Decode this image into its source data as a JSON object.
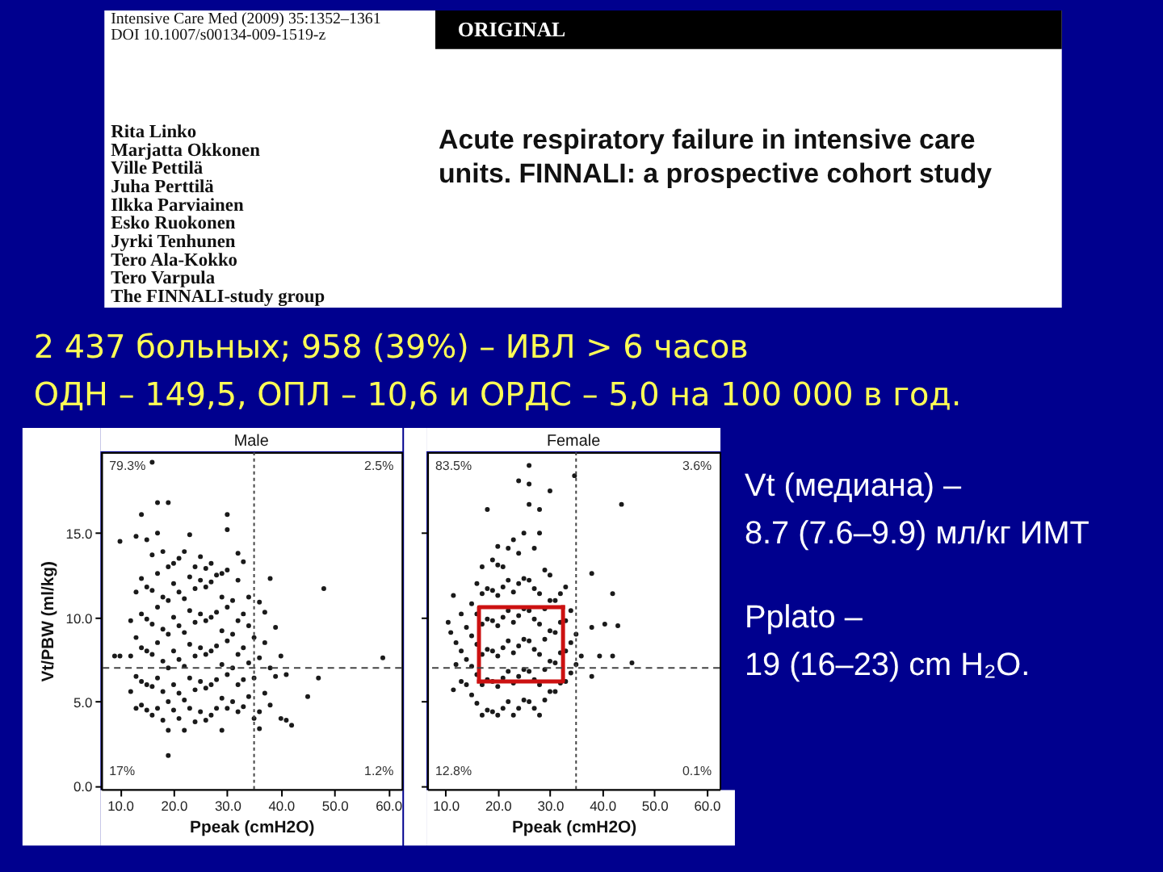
{
  "chart_data": [
    {
      "type": "other",
      "title": "Acute respiratory failure in intensive care units. FINNALI: a prospective cohort study",
      "annotations": [
        "Intensive Care Med (2009) 35:1352–1361",
        "DOI 10.1007/s00134-009-1519-z",
        "ORIGINAL",
        "Rita Linko",
        "Marjatta Okkonen",
        "Ville Pettilä",
        "Juha Perttilä",
        "Ilkka Parviainen",
        "Esko Ruokonen",
        "Jyrki Tenhunen",
        "Tero Ala-Kokko",
        "Tero Varpula",
        "The FINNALI-study group"
      ]
    },
    {
      "type": "other",
      "annotations": [
        "2 437 больных; 958 (39%) – ИВЛ > 6 часов",
        "ОДН – 149,5, ОПЛ – 10,6 и ОРДС – 5,0 на 100 000 в год."
      ]
    },
    {
      "type": "scatter",
      "title": "Male",
      "xlabel": "Ppeak (cmH2O)",
      "ylabel": "Vt/PBW (ml/kg)",
      "xlim": [
        6.5,
        62.5
      ],
      "ylim": [
        -0.2,
        19.8
      ],
      "xticks": [
        {
          "value": 10,
          "label": "10.0"
        },
        {
          "value": 20,
          "label": "20.0"
        },
        {
          "value": 30,
          "label": "30.0"
        },
        {
          "value": 40,
          "label": "40.0"
        },
        {
          "value": 50,
          "label": "50.0"
        },
        {
          "value": 60,
          "label": "60.0"
        }
      ],
      "yticks": [
        {
          "value": 0,
          "label": "0.0"
        },
        {
          "value": 5,
          "label": "5.0"
        },
        {
          "value": 10,
          "label": "10.0"
        },
        {
          "value": 15,
          "label": "15.0"
        }
      ],
      "marker": "circle",
      "ref_lines": [
        {
          "axis": "y",
          "value": 7,
          "line_style": "dashed",
          "color": "#444444"
        },
        {
          "axis": "x",
          "value": 35,
          "line_style": "dotted",
          "color": "#444444"
        }
      ],
      "annotations": [
        "79.3%",
        "2.5%",
        "17%",
        "1.2%"
      ],
      "series": [
        {
          "type": "scatter",
          "color": "#1a1a1a",
          "x": [
            9,
            10,
            10,
            12,
            12,
            12,
            13,
            13,
            13,
            13,
            13,
            14,
            14,
            14,
            14,
            14,
            14,
            15,
            15,
            15,
            15,
            15,
            15,
            16,
            16,
            16,
            16,
            16,
            16,
            16,
            17,
            17,
            17,
            17,
            17,
            17,
            17,
            18,
            18,
            18,
            18,
            18,
            18,
            19,
            19,
            19,
            19,
            19,
            19,
            19,
            19,
            20,
            20,
            20,
            20,
            20,
            20,
            21,
            21,
            21,
            21,
            21,
            21,
            22,
            22,
            22,
            22,
            22,
            22,
            23,
            23,
            23,
            23,
            23,
            23,
            24,
            24,
            24,
            24,
            24,
            24,
            25,
            25,
            25,
            25,
            25,
            25,
            26,
            26,
            26,
            26,
            26,
            26,
            27,
            27,
            27,
            27,
            27,
            27,
            28,
            28,
            28,
            28,
            28,
            29,
            29,
            29,
            29,
            29,
            29,
            30,
            30,
            30,
            30,
            30,
            30,
            30,
            31,
            31,
            31,
            31,
            32,
            32,
            32,
            32,
            32,
            32,
            33,
            33,
            33,
            33,
            33,
            34,
            34,
            34,
            34,
            35,
            35,
            35,
            36,
            36,
            36,
            36,
            37,
            37,
            37,
            38,
            38,
            38,
            39,
            39,
            40,
            40,
            41,
            41,
            42,
            45,
            47,
            48,
            59
          ],
          "values": [
            7.7,
            7.7,
            14.5,
            5.6,
            7.7,
            9.8,
            4.6,
            6.5,
            8.8,
            11.5,
            14.8,
            4.8,
            6.2,
            8.2,
            10.2,
            12.3,
            16.1,
            4.5,
            6.0,
            8.0,
            9.9,
            11.8,
            14.6,
            4.2,
            5.9,
            7.8,
            9.6,
            11.6,
            13.7,
            19.2,
            4.6,
            6.4,
            8.5,
            10.6,
            12.6,
            15.0,
            16.8,
            3.9,
            5.6,
            7.4,
            9.3,
            11.2,
            13.9,
            1.8,
            3.3,
            5.0,
            7.0,
            9.0,
            11.0,
            13.0,
            16.8,
            4.5,
            6.0,
            8.0,
            10.0,
            12.0,
            13.2,
            4.0,
            5.5,
            7.5,
            9.5,
            11.5,
            13.5,
            3.3,
            5.1,
            7.1,
            9.1,
            11.1,
            13.9,
            4.6,
            6.4,
            8.4,
            10.4,
            12.4,
            14.9,
            3.8,
            5.7,
            7.7,
            9.7,
            11.7,
            13.0,
            4.4,
            6.2,
            8.2,
            10.2,
            12.2,
            13.6,
            3.9,
            5.8,
            7.8,
            9.8,
            11.8,
            12.9,
            4.2,
            6.0,
            8.0,
            10.0,
            12.1,
            13.2,
            4.6,
            6.3,
            8.3,
            10.3,
            12.5,
            3.3,
            5.2,
            7.2,
            9.2,
            11.2,
            12.6,
            4.6,
            6.6,
            8.6,
            10.6,
            12.8,
            15.2,
            16.1,
            5.0,
            7.0,
            9.0,
            11.0,
            4.4,
            6.0,
            7.8,
            9.8,
            12.2,
            13.8,
            4.7,
            6.3,
            8.2,
            10.2,
            13.3,
            5.3,
            7.3,
            9.5,
            11.2,
            4.0,
            6.4,
            8.8,
            3.4,
            4.4,
            7.6,
            10.9,
            5.5,
            8.5,
            10.3,
            4.8,
            7.0,
            12.3,
            6.5,
            9.4,
            4.0,
            7.7,
            3.9,
            6.6,
            3.6,
            5.3,
            6.4,
            11.7,
            7.6
          ]
        }
      ]
    },
    {
      "type": "scatter",
      "title": "Female",
      "xlabel": "Ppeak (cmH2O)",
      "xlim": [
        6.5,
        62.5
      ],
      "ylim": [
        -0.2,
        19.8
      ],
      "tick_labels": "x",
      "xticks": [
        {
          "value": 10,
          "label": "10.0"
        },
        {
          "value": 20,
          "label": "20.0"
        },
        {
          "value": 30,
          "label": "30.0"
        },
        {
          "value": 40,
          "label": "40.0"
        },
        {
          "value": 50,
          "label": "50.0"
        },
        {
          "value": 60,
          "label": "60.0"
        }
      ],
      "yticks": [
        0,
        5,
        10,
        15
      ],
      "marker": "circle",
      "ref_lines": [
        {
          "axis": "y",
          "value": 7,
          "line_style": "dashed",
          "color": "#444444"
        },
        {
          "axis": "x",
          "value": 35,
          "line_style": "dotted",
          "color": "#444444"
        }
      ],
      "annotations": [
        "83.5%",
        "3.6%",
        "12.8%",
        "0.1%"
      ],
      "series": [
        {
          "type": "scatter",
          "color": "#1a1a1a",
          "x": [
            10.5,
            11,
            11.5,
            11.5,
            12,
            12,
            13,
            13,
            13,
            14,
            14,
            14,
            15,
            15,
            15,
            15,
            16,
            16,
            16,
            16,
            16,
            17,
            17,
            17,
            17,
            17,
            17,
            18,
            18,
            18,
            18,
            18,
            18,
            19,
            19,
            19,
            19,
            19,
            19,
            20,
            20,
            20,
            20,
            20,
            20,
            20,
            21,
            21,
            21,
            21,
            21,
            21,
            22,
            22,
            22,
            22,
            22,
            22,
            23,
            23,
            23,
            23,
            23,
            23,
            24,
            24,
            24,
            24,
            24,
            24,
            24,
            25,
            25,
            25,
            25,
            25,
            25,
            26,
            26,
            26,
            26,
            26,
            26,
            26,
            26,
            27,
            27,
            27,
            27,
            27,
            27,
            28,
            28,
            28,
            28,
            28,
            28,
            28,
            29,
            29,
            29,
            29,
            29,
            30,
            30,
            30,
            30,
            30,
            30,
            31,
            31,
            31,
            31,
            32,
            32,
            32,
            32,
            33,
            33,
            33,
            33,
            34,
            34,
            34,
            34.7,
            35,
            35,
            36,
            38,
            38,
            38,
            39.5,
            40.5,
            42,
            42,
            43,
            43.7,
            45.7
          ],
          "values": [
            9.7,
            9.1,
            5.7,
            11.3,
            7.2,
            8.5,
            6.2,
            8.0,
            10.2,
            6.0,
            7.5,
            9.4,
            5.4,
            7.1,
            8.9,
            10.8,
            4.9,
            6.6,
            8.4,
            10.2,
            12.0,
            4.2,
            6.0,
            7.8,
            9.6,
            11.4,
            13.0,
            4.5,
            6.3,
            8.1,
            9.9,
            11.7,
            16.4,
            4.4,
            6.2,
            8.0,
            9.8,
            11.6,
            13.4,
            4.2,
            5.9,
            7.7,
            9.5,
            11.3,
            13.1,
            14.2,
            4.6,
            6.4,
            8.2,
            10.0,
            11.8,
            13.0,
            5.0,
            6.8,
            8.6,
            10.4,
            12.2,
            14.1,
            4.2,
            6.1,
            7.9,
            9.7,
            11.5,
            14.6,
            4.6,
            6.5,
            8.3,
            10.1,
            12.0,
            13.8,
            18.1,
            5.1,
            6.9,
            8.7,
            10.5,
            12.3,
            15.0,
            5.0,
            6.8,
            8.6,
            10.4,
            12.2,
            16.7,
            17.9,
            19.0,
            4.6,
            6.3,
            8.1,
            9.9,
            11.7,
            14.1,
            4.2,
            6.0,
            7.8,
            9.6,
            11.4,
            15.0,
            16.4,
            5.1,
            6.9,
            8.7,
            10.5,
            12.8,
            5.6,
            7.4,
            9.2,
            11.0,
            12.5,
            17.5,
            5.6,
            7.3,
            9.1,
            11.0,
            6.1,
            7.9,
            9.7,
            11.4,
            6.2,
            8.0,
            9.8,
            11.8,
            6.7,
            8.5,
            10.4,
            18.4,
            7.2,
            9.0,
            7.7,
            6.5,
            9.4,
            12.6,
            7.7,
            9.6,
            7.7,
            11.4,
            9.5,
            16.7,
            7.3
          ]
        },
        {
          "type": "line",
          "color": "#cc1111",
          "marker": "none",
          "x": [
            16.4,
            32.5,
            32.5
          ],
          "values": [
            6.2,
            6.2,
            10.6
          ]
        },
        {
          "type": "line",
          "color": "#cc1111",
          "marker": "none",
          "x": [
            16.4,
            16.4,
            32.5
          ],
          "values": [
            6.2,
            10.6,
            10.6
          ]
        }
      ]
    },
    {
      "type": "other",
      "annotations": [
        "Vt (медиана) –",
        "8.7 (7.6–9.9) мл/кг ИМТ",
        "Pplato –",
        "19 (16–23) cm H₂O."
      ]
    }
  ]
}
